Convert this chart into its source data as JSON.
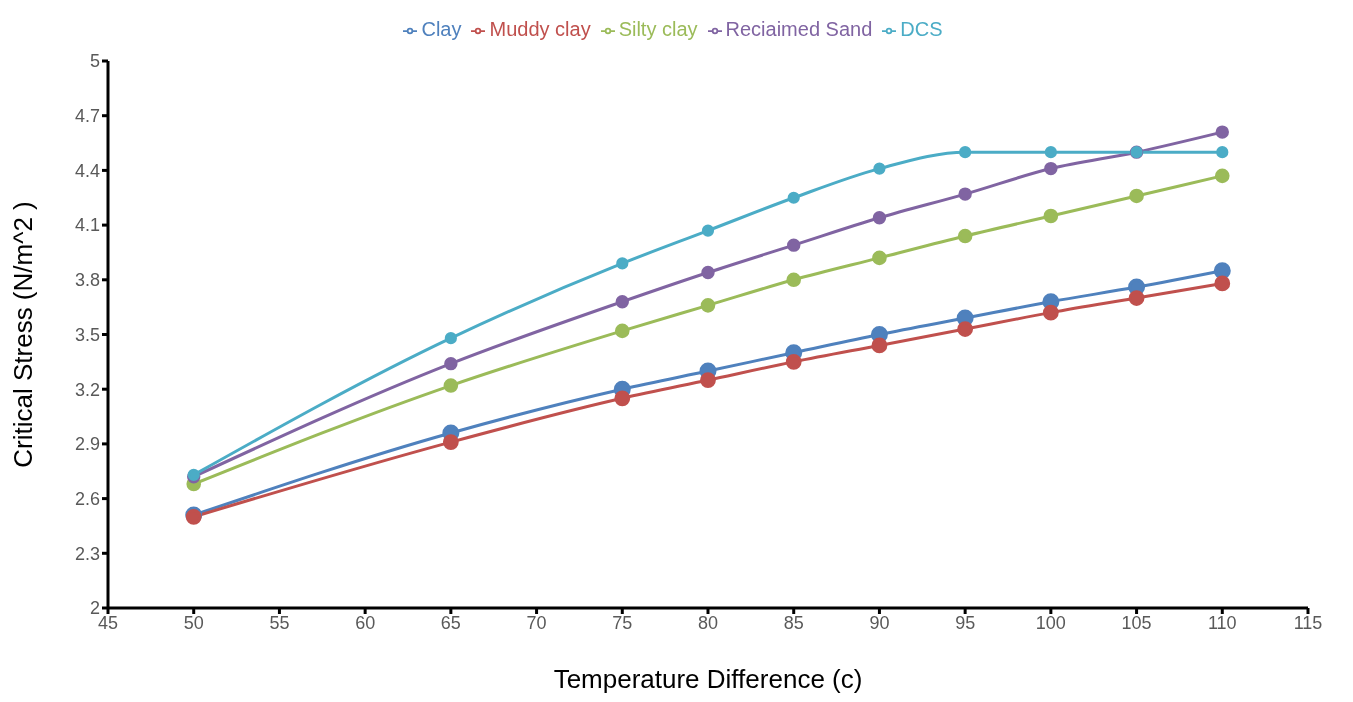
{
  "chart_data": {
    "type": "line",
    "xlabel": "Temperature Difference (c)",
    "ylabel": "Critical Stress (N/m^2 )",
    "x": [
      50,
      65,
      75,
      80,
      85,
      90,
      95,
      100,
      105,
      110
    ],
    "series": [
      {
        "name": "Clay",
        "color": "#4f81bd",
        "values": [
          2.51,
          2.96,
          3.2,
          3.3,
          3.4,
          3.5,
          3.59,
          3.68,
          3.76,
          3.85
        ]
      },
      {
        "name": "Muddy clay",
        "color": "#c0504d",
        "values": [
          2.5,
          2.91,
          3.15,
          3.25,
          3.35,
          3.44,
          3.53,
          3.62,
          3.7,
          3.78
        ]
      },
      {
        "name": "Silty clay",
        "color": "#9bbb59",
        "values": [
          2.68,
          3.22,
          3.52,
          3.66,
          3.8,
          3.92,
          4.04,
          4.15,
          4.26,
          4.37
        ]
      },
      {
        "name": "Reciaimed Sand",
        "color": "#8064a2",
        "values": [
          2.72,
          3.34,
          3.68,
          3.84,
          3.99,
          4.14,
          4.27,
          4.41,
          4.5,
          4.61
        ]
      },
      {
        "name": "DCS",
        "color": "#4bacc6",
        "values": [
          2.73,
          3.48,
          3.89,
          4.07,
          4.25,
          4.41,
          4.5,
          4.5,
          4.5,
          4.5
        ]
      }
    ],
    "xlim": [
      45,
      115
    ],
    "xticks": [
      45,
      50,
      55,
      60,
      65,
      70,
      75,
      80,
      85,
      90,
      95,
      100,
      105,
      110,
      115
    ],
    "ylim": [
      2,
      5
    ],
    "yticks": [
      2,
      2.3,
      2.6,
      2.9,
      3.2,
      3.5,
      3.8,
      4.1,
      4.4,
      4.7,
      5
    ],
    "grid": false,
    "legend": "top",
    "marker": "circle",
    "line_style": "solid"
  }
}
